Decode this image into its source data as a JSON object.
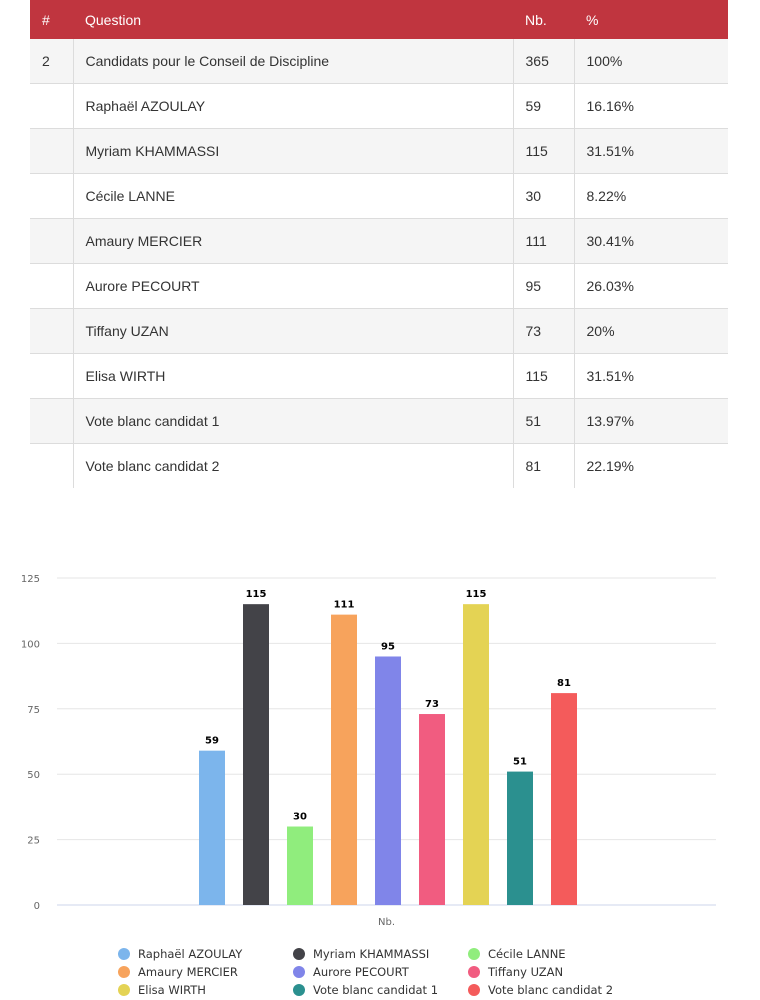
{
  "table": {
    "headers": [
      "#",
      "Question",
      "Nb.",
      "%"
    ],
    "rows": [
      {
        "num": "2",
        "question": "Candidats pour le Conseil de Discipline",
        "nb": "365",
        "pct": "100%"
      },
      {
        "num": "",
        "question": "Raphaël AZOULAY",
        "nb": "59",
        "pct": "16.16%"
      },
      {
        "num": "",
        "question": "Myriam KHAMMASSI",
        "nb": "115",
        "pct": "31.51%"
      },
      {
        "num": "",
        "question": "Cécile LANNE",
        "nb": "30",
        "pct": "8.22%"
      },
      {
        "num": "",
        "question": "Amaury MERCIER",
        "nb": "111",
        "pct": "30.41%"
      },
      {
        "num": "",
        "question": "Aurore PECOURT",
        "nb": "95",
        "pct": "26.03%"
      },
      {
        "num": "",
        "question": "Tiffany UZAN",
        "nb": "73",
        "pct": "20%"
      },
      {
        "num": "",
        "question": "Elisa WIRTH",
        "nb": "115",
        "pct": "31.51%"
      },
      {
        "num": "",
        "question": "Vote blanc candidat 1",
        "nb": "51",
        "pct": "13.97%"
      },
      {
        "num": "",
        "question": "Vote blanc candidat 2",
        "nb": "81",
        "pct": "22.19%"
      }
    ]
  },
  "chart_data": {
    "type": "bar",
    "xlabel": "Nb.",
    "ylabel": "",
    "ylim": [
      0,
      125
    ],
    "yticks": [
      0,
      25,
      50,
      75,
      100,
      125
    ],
    "grid": true,
    "legend_position": "bottom",
    "categories": [
      "Nb."
    ],
    "series": [
      {
        "name": "Raphaël AZOULAY",
        "value": 59,
        "color": "#7cb5ec"
      },
      {
        "name": "Myriam KHAMMASSI",
        "value": 115,
        "color": "#434348"
      },
      {
        "name": "Cécile LANNE",
        "value": 30,
        "color": "#90ed7d"
      },
      {
        "name": "Amaury MERCIER",
        "value": 111,
        "color": "#f7a35c"
      },
      {
        "name": "Aurore PECOURT",
        "value": 95,
        "color": "#8085e9"
      },
      {
        "name": "Tiffany UZAN",
        "value": 73,
        "color": "#f15c80"
      },
      {
        "name": "Elisa WIRTH",
        "value": 115,
        "color": "#e4d354"
      },
      {
        "name": "Vote blanc candidat 1",
        "value": 51,
        "color": "#2b908f"
      },
      {
        "name": "Vote blanc candidat 2",
        "value": 81,
        "color": "#f45b5b"
      }
    ]
  }
}
